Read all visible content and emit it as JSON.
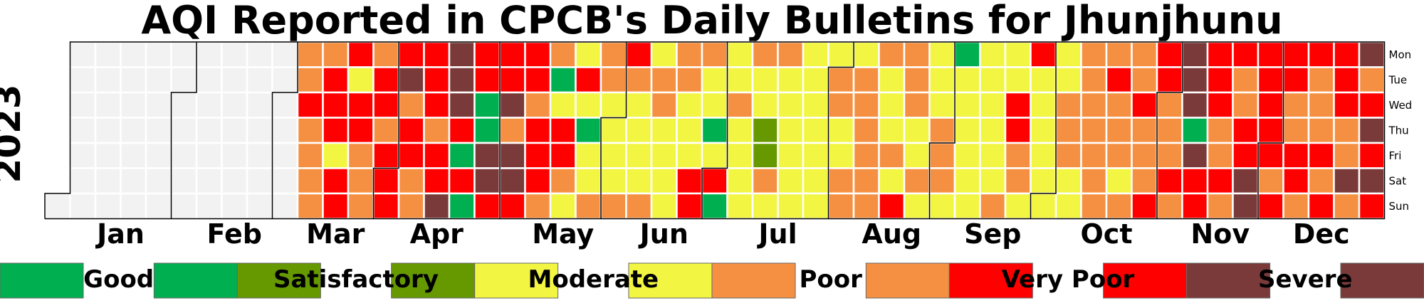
{
  "chart_data": {
    "type": "heatmap",
    "title": "AQI Reported in CPCB's Daily Bulletins for Jhunjhunu",
    "year_label": "2023",
    "weekday_labels": [
      "Mon",
      "Tue",
      "Wed",
      "Thu",
      "Fri",
      "Sat",
      "Sun"
    ],
    "month_labels": [
      "Jan",
      "Feb",
      "Mar",
      "Apr",
      "May",
      "Jun",
      "Jul",
      "Aug",
      "Sep",
      "Oct",
      "Nov",
      "Dec"
    ],
    "legend": [
      {
        "key": "G",
        "label": "Good",
        "color": "#00b050"
      },
      {
        "key": "S",
        "label": "Satisfactory",
        "color": "#669900"
      },
      {
        "key": "M",
        "label": "Moderate",
        "color": "#f2f542"
      },
      {
        "key": "P",
        "label": "Poor",
        "color": "#f59042"
      },
      {
        "key": "V",
        "label": "Very Poor",
        "color": "#ff0000"
      },
      {
        "key": "X",
        "label": "Severe",
        "color": "#7a3a3a"
      }
    ],
    "no_data_color": "#f2f2f2",
    "week_start": "2022-12-26",
    "weeks": [
      "......N",
      "NNNNNNN",
      "NNNNNNN",
      "NNNNNNN",
      "NNNNNNN",
      "NNNNNNN",
      "NNNNNNN",
      "NNNNNNN",
      "NNNNNNN",
      "NNNNNNN",
      "PPVPPPP",
      "PVVVMVV",
      "VMVVPPP",
      "PVVPVVV",
      "VXPVVPP",
      "VVVPVVX",
      "XXXVGVG",
      "VVGGXXV",
      "VVXPXXV",
      "VVPVVVP",
      "PGMVVPM",
      "MVMGMMP",
      "PPMMMMP",
      "VPMMMMP",
      "MPPMMMM",
      "PPMMMVV",
      "PMMGMVG",
      "MMPMMMM",
      "PMMSSPM",
      "PMMMMMM",
      "MMMMMMM",
      "MPPMMPP",
      "MPPPPPP",
      "PMMMPMV",
      "PPPMMPM",
      "MMMPPPM",
      "GMMMMMM",
      "MMMMMMP",
      "MMVVPPM",
      "VMMMMMM",
      "MMPPPMM",
      "PPPPPPP",
      "PVPPPMP",
      "PPVPPPV",
      "VVPPPVP",
      "XXXGXVV",
      "VVVPPVP",
      "VPPVVXX",
      "VVVVVPV",
      "VVPPVVP",
      "VPPPVPV",
      "VVVPPXP",
      "XPVXVXV"
    ]
  }
}
